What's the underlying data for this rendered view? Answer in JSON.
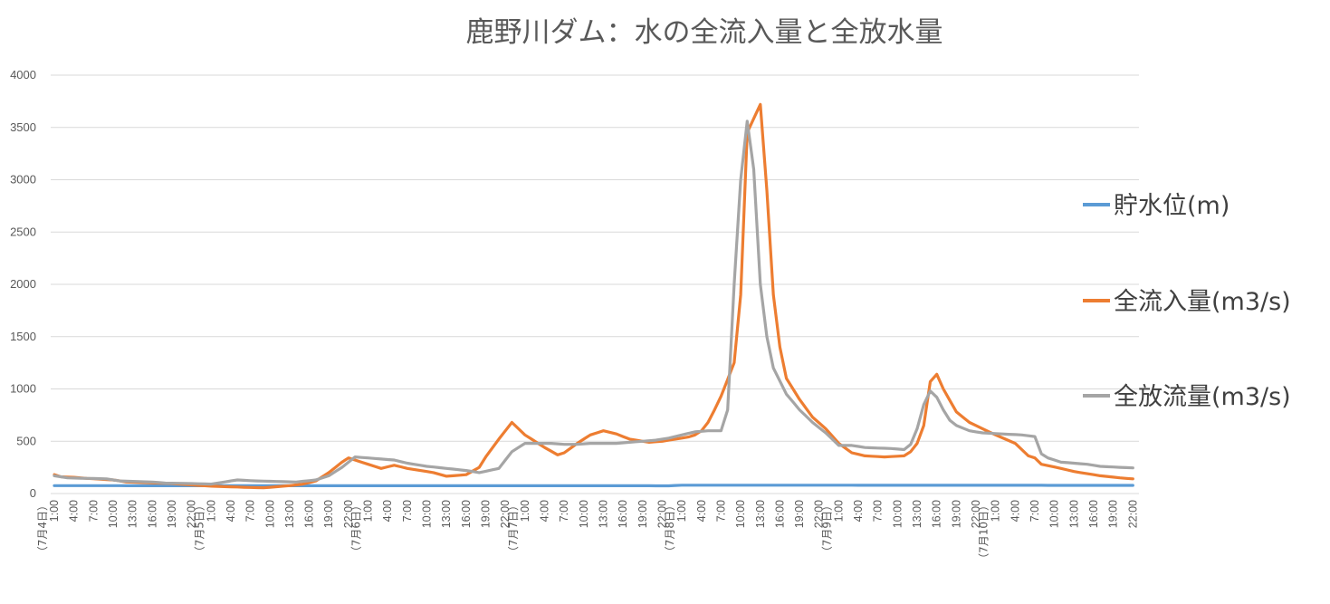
{
  "chart_data": {
    "type": "line",
    "title": "鹿野川ダム：水の全流入量と全放水量",
    "xlabel": "",
    "ylabel": "",
    "ylim": [
      0,
      4000
    ],
    "yticks": [
      0,
      500,
      1000,
      1500,
      2000,
      2500,
      3000,
      3500,
      4000
    ],
    "grid": true,
    "legend_position": "right",
    "x_time_ticks": [
      "1:00",
      "4:00",
      "7:00",
      "10:00",
      "13:00",
      "16:00",
      "19:00",
      "22:00"
    ],
    "x_day_labels": [
      "（7月4日）",
      "（7月5日）",
      "（7月6日）",
      "（7月7日）",
      "（7月8日）",
      "（7月9日）",
      "（7月10日）"
    ],
    "x": {
      "start": "7月4日 1:00",
      "step_hours": 1,
      "points": 166
    },
    "series": [
      {
        "name": "貯水位(m)",
        "color": "#5B9BD5",
        "knots": [
          [
            0,
            75
          ],
          [
            94,
            74
          ],
          [
            96,
            80
          ],
          [
            163,
            78
          ],
          [
            167,
            78
          ]
        ]
      },
      {
        "name": "全流入量(m3/s)",
        "color": "#ED7D31",
        "knots": [
          [
            0,
            180
          ],
          [
            1,
            160
          ],
          [
            3,
            155
          ],
          [
            5,
            145
          ],
          [
            9,
            130
          ],
          [
            11,
            110
          ],
          [
            18,
            95
          ],
          [
            24,
            70
          ],
          [
            29,
            60
          ],
          [
            32,
            55
          ],
          [
            36,
            75
          ],
          [
            38,
            90
          ],
          [
            40,
            120
          ],
          [
            42,
            200
          ],
          [
            44,
            300
          ],
          [
            45,
            340
          ],
          [
            47,
            300
          ],
          [
            50,
            240
          ],
          [
            52,
            270
          ],
          [
            54,
            240
          ],
          [
            58,
            200
          ],
          [
            60,
            165
          ],
          [
            63,
            180
          ],
          [
            65,
            250
          ],
          [
            66,
            350
          ],
          [
            68,
            520
          ],
          [
            70,
            680
          ],
          [
            72,
            560
          ],
          [
            75,
            440
          ],
          [
            77,
            370
          ],
          [
            78,
            390
          ],
          [
            80,
            480
          ],
          [
            82,
            560
          ],
          [
            84,
            600
          ],
          [
            86,
            570
          ],
          [
            88,
            520
          ],
          [
            91,
            490
          ],
          [
            93,
            500
          ],
          [
            95,
            520
          ],
          [
            97,
            540
          ],
          [
            98,
            560
          ],
          [
            99,
            600
          ],
          [
            100,
            680
          ],
          [
            101,
            800
          ],
          [
            102,
            930
          ],
          [
            104,
            1250
          ],
          [
            105,
            1900
          ],
          [
            106,
            3450
          ],
          [
            108,
            3720
          ],
          [
            109,
            2900
          ],
          [
            110,
            1900
          ],
          [
            111,
            1400
          ],
          [
            112,
            1100
          ],
          [
            114,
            900
          ],
          [
            116,
            730
          ],
          [
            118,
            620
          ],
          [
            120,
            480
          ],
          [
            122,
            390
          ],
          [
            124,
            360
          ],
          [
            127,
            350
          ],
          [
            130,
            360
          ],
          [
            131,
            400
          ],
          [
            132,
            480
          ],
          [
            133,
            650
          ],
          [
            134,
            1070
          ],
          [
            135,
            1140
          ],
          [
            136,
            1000
          ],
          [
            138,
            780
          ],
          [
            140,
            680
          ],
          [
            142,
            620
          ],
          [
            144,
            560
          ],
          [
            147,
            480
          ],
          [
            149,
            360
          ],
          [
            150,
            340
          ],
          [
            151,
            280
          ],
          [
            154,
            240
          ],
          [
            156,
            210
          ],
          [
            160,
            170
          ],
          [
            163,
            150
          ],
          [
            167,
            130
          ]
        ]
      },
      {
        "name": "全放流量(m3/s)",
        "color": "#A5A5A5",
        "knots": [
          [
            0,
            170
          ],
          [
            2,
            150
          ],
          [
            8,
            140
          ],
          [
            10,
            120
          ],
          [
            15,
            110
          ],
          [
            17,
            100
          ],
          [
            21,
            95
          ],
          [
            24,
            90
          ],
          [
            26,
            110
          ],
          [
            28,
            130
          ],
          [
            31,
            120
          ],
          [
            34,
            115
          ],
          [
            37,
            110
          ],
          [
            40,
            130
          ],
          [
            42,
            170
          ],
          [
            44,
            250
          ],
          [
            46,
            350
          ],
          [
            48,
            340
          ],
          [
            50,
            330
          ],
          [
            52,
            320
          ],
          [
            54,
            290
          ],
          [
            57,
            260
          ],
          [
            60,
            240
          ],
          [
            63,
            220
          ],
          [
            65,
            200
          ],
          [
            68,
            240
          ],
          [
            70,
            400
          ],
          [
            72,
            480
          ],
          [
            74,
            480
          ],
          [
            76,
            480
          ],
          [
            78,
            470
          ],
          [
            80,
            470
          ],
          [
            82,
            480
          ],
          [
            84,
            480
          ],
          [
            86,
            480
          ],
          [
            88,
            490
          ],
          [
            90,
            500
          ],
          [
            92,
            510
          ],
          [
            94,
            530
          ],
          [
            96,
            560
          ],
          [
            98,
            590
          ],
          [
            100,
            600
          ],
          [
            102,
            600
          ],
          [
            103,
            800
          ],
          [
            104,
            2000
          ],
          [
            105,
            3000
          ],
          [
            106,
            3560
          ],
          [
            107,
            3100
          ],
          [
            108,
            2000
          ],
          [
            109,
            1500
          ],
          [
            110,
            1200
          ],
          [
            112,
            950
          ],
          [
            114,
            800
          ],
          [
            116,
            680
          ],
          [
            118,
            580
          ],
          [
            119,
            520
          ],
          [
            120,
            460
          ],
          [
            122,
            460
          ],
          [
            124,
            440
          ],
          [
            128,
            430
          ],
          [
            130,
            420
          ],
          [
            131,
            470
          ],
          [
            132,
            620
          ],
          [
            133,
            850
          ],
          [
            134,
            980
          ],
          [
            135,
            920
          ],
          [
            136,
            800
          ],
          [
            137,
            700
          ],
          [
            138,
            650
          ],
          [
            140,
            600
          ],
          [
            142,
            580
          ],
          [
            145,
            570
          ],
          [
            148,
            560
          ],
          [
            150,
            545
          ],
          [
            151,
            380
          ],
          [
            152,
            340
          ],
          [
            154,
            300
          ],
          [
            158,
            280
          ],
          [
            160,
            260
          ],
          [
            163,
            250
          ],
          [
            167,
            240
          ]
        ]
      }
    ]
  }
}
